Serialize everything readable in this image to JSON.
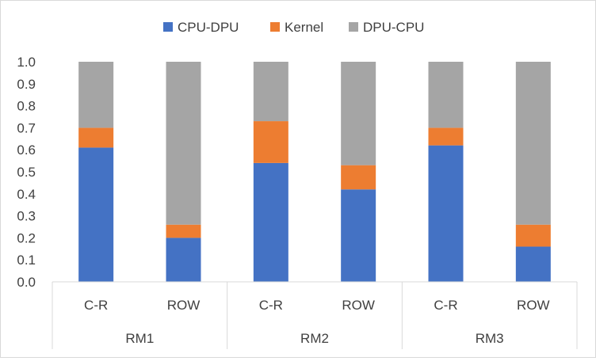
{
  "chart_data": {
    "type": "bar",
    "stacked": true,
    "groups": [
      "RM1",
      "RM2",
      "RM3"
    ],
    "categories": [
      "C-R",
      "ROW",
      "C-R",
      "ROW",
      "C-R",
      "ROW"
    ],
    "series": [
      {
        "name": "CPU-DPU",
        "color": "#4472C4",
        "values": [
          0.61,
          0.2,
          0.54,
          0.42,
          0.62,
          0.16
        ]
      },
      {
        "name": "Kernel",
        "color": "#ED7D31",
        "values": [
          0.09,
          0.06,
          0.19,
          0.11,
          0.08,
          0.1
        ]
      },
      {
        "name": "DPU-CPU",
        "color": "#A5A5A5",
        "values": [
          0.3,
          0.74,
          0.27,
          0.47,
          0.3,
          0.74
        ]
      }
    ],
    "ylim": [
      0,
      1.0
    ],
    "yticks": [
      "0.0",
      "0.1",
      "0.2",
      "0.3",
      "0.4",
      "0.5",
      "0.6",
      "0.7",
      "0.8",
      "0.9",
      "1.0"
    ],
    "title": "",
    "xlabel": "",
    "ylabel": "",
    "legend_position": "top",
    "grid": false
  }
}
